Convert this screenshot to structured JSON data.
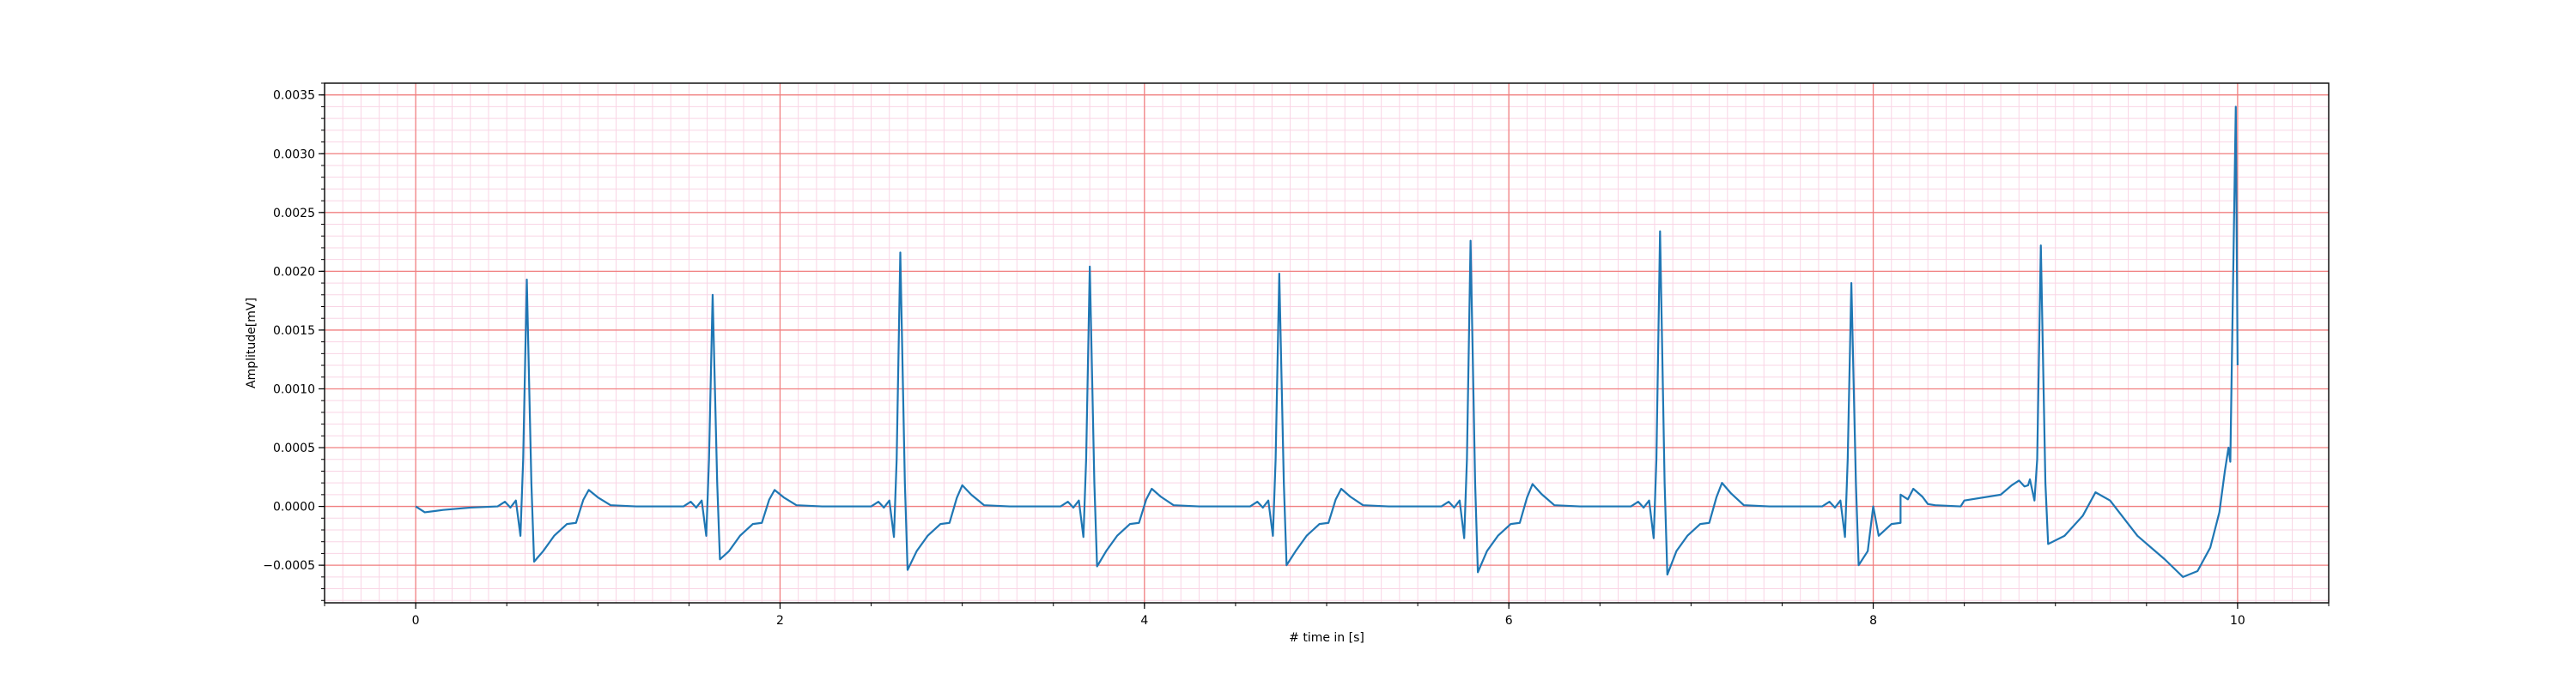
{
  "chart_data": {
    "type": "line",
    "title": "",
    "xlabel": "# time in [s]",
    "ylabel": "Amplitude[mV]",
    "xlim": [
      -0.5,
      10.5
    ],
    "ylim": [
      -0.00082,
      0.0036
    ],
    "x_ticks": [
      0,
      2,
      4,
      6,
      8,
      10
    ],
    "x_tick_labels": [
      "0",
      "2",
      "4",
      "6",
      "8",
      "10"
    ],
    "y_ticks": [
      -0.0005,
      0.0,
      0.0005,
      0.001,
      0.0015,
      0.002,
      0.0025,
      0.003,
      0.0035
    ],
    "y_tick_labels": [
      "−0.0005",
      "0.0000",
      "0.0005",
      "0.0010",
      "0.0015",
      "0.0020",
      "0.0025",
      "0.0030",
      "0.0035"
    ],
    "grid": {
      "major": true,
      "minor": true,
      "major_color": "#f08080",
      "minor_color": "#f9d5e5"
    },
    "colors": {
      "line": "#1f77b4",
      "frame": "#000000",
      "background": "#ffffff"
    },
    "beats": [
      {
        "r_time": 0.61,
        "r_peak": 0.00193,
        "s_min": -0.00047,
        "q_min": -0.00025,
        "t_peak": 0.00014
      },
      {
        "r_time": 1.63,
        "r_peak": 0.0018,
        "s_min": -0.00045,
        "q_min": -0.00025,
        "t_peak": 0.00014
      },
      {
        "r_time": 2.66,
        "r_peak": 0.00216,
        "s_min": -0.00054,
        "q_min": -0.00026,
        "t_peak": 0.00018
      },
      {
        "r_time": 3.7,
        "r_peak": 0.00204,
        "s_min": -0.00051,
        "q_min": -0.00026,
        "t_peak": 0.00015
      },
      {
        "r_time": 4.74,
        "r_peak": 0.00198,
        "s_min": -0.0005,
        "q_min": -0.00025,
        "t_peak": 0.00015
      },
      {
        "r_time": 5.79,
        "r_peak": 0.00226,
        "s_min": -0.00056,
        "q_min": -0.00027,
        "t_peak": 0.00019
      },
      {
        "r_time": 6.83,
        "r_peak": 0.00234,
        "s_min": -0.00058,
        "q_min": -0.00027,
        "t_peak": 0.0002
      },
      {
        "r_time": 7.88,
        "r_peak": 0.0019,
        "s_min": -0.0005,
        "q_min": -0.00026,
        "t_peak": 0.00015
      },
      {
        "r_time": 8.92,
        "r_peak": 0.00222,
        "s_min": -0.00032,
        "q_min": 5e-05,
        "t_peak": 0.00014
      }
    ],
    "trace_points": [
      [
        0.0,
        0.0
      ],
      [
        0.05,
        -5e-05
      ],
      [
        0.15,
        -3e-05
      ],
      [
        0.3,
        -1e-05
      ],
      [
        0.45,
        0.0
      ],
      [
        8.0,
        0.0
      ],
      [
        8.15,
        0.0001
      ],
      [
        8.3,
        2e-05
      ],
      [
        8.5,
        5e-05
      ],
      [
        8.7,
        0.0001
      ],
      [
        8.85,
        0.00018
      ],
      [
        9.05,
        -0.00025
      ],
      [
        9.15,
        -8e-05
      ],
      [
        9.22,
        0.00012
      ],
      [
        9.3,
        5e-05
      ],
      [
        9.45,
        -0.00025
      ],
      [
        9.6,
        -0.00045
      ],
      [
        9.7,
        -0.0006
      ],
      [
        9.78,
        -0.00055
      ],
      [
        9.85,
        -0.00035
      ],
      [
        9.9,
        -5e-05
      ],
      [
        9.93,
        0.0003
      ],
      [
        9.95,
        0.0005
      ],
      [
        9.96,
        0.00038
      ],
      [
        9.99,
        0.0034
      ],
      [
        10.0,
        0.0012
      ]
    ]
  }
}
